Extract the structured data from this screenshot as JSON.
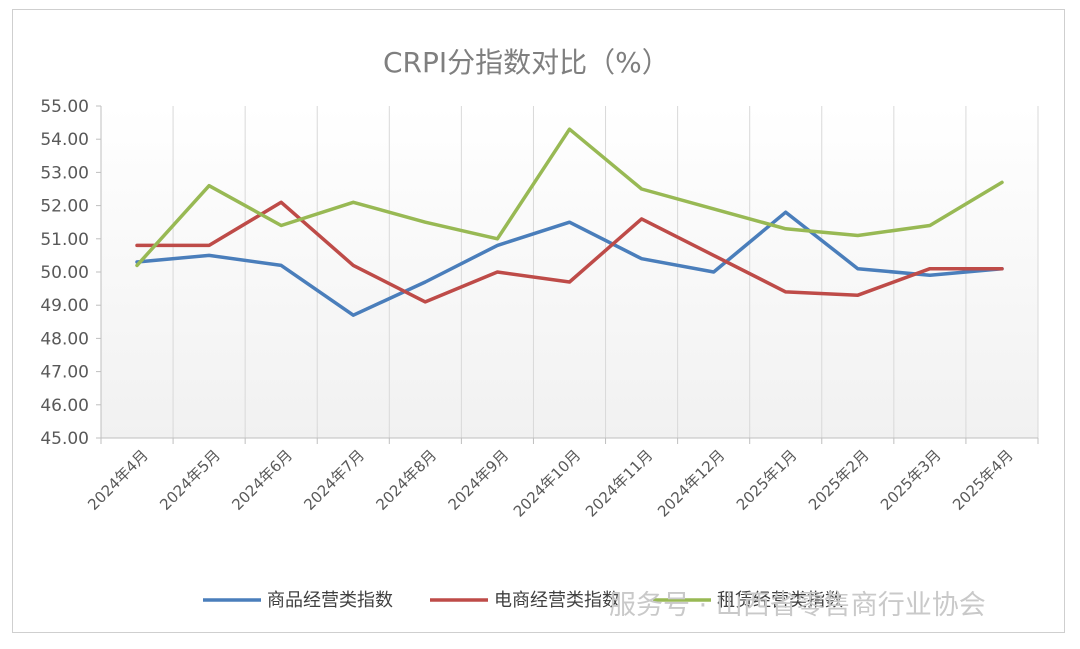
{
  "chart_data": {
    "type": "line",
    "title": "CRPI分指数对比（%）",
    "categories": [
      "2024年4月",
      "2024年5月",
      "2024年6月",
      "2024年7月",
      "2024年8月",
      "2024年9月",
      "2024年10月",
      "2024年11月",
      "2024年12月",
      "2025年1月",
      "2025年2月",
      "2025年3月",
      "2025年4月"
    ],
    "ylim": [
      45,
      55
    ],
    "yticks": [
      "45.00",
      "46.00",
      "47.00",
      "48.00",
      "49.00",
      "50.00",
      "51.00",
      "52.00",
      "53.00",
      "54.00",
      "55.00"
    ],
    "grid": "vertical",
    "legend_position": "bottom",
    "series": [
      {
        "name": "商品经营类指数",
        "color": "#4a7ebb",
        "values": [
          50.3,
          50.5,
          50.2,
          48.7,
          49.7,
          50.8,
          51.5,
          50.4,
          50.0,
          51.8,
          50.1,
          49.9,
          50.1
        ]
      },
      {
        "name": "电商经营类指数",
        "color": "#be4b48",
        "values": [
          50.8,
          50.8,
          52.1,
          50.2,
          49.1,
          50.0,
          49.7,
          51.6,
          50.5,
          49.4,
          49.3,
          50.1,
          50.1
        ]
      },
      {
        "name": "租赁经营类指数",
        "color": "#98b954",
        "values": [
          50.2,
          52.6,
          51.4,
          52.1,
          51.5,
          51.0,
          54.3,
          52.5,
          51.9,
          51.3,
          51.1,
          51.4,
          52.7
        ]
      }
    ]
  },
  "watermark": "服务号 · 山西省零售商行业协会"
}
